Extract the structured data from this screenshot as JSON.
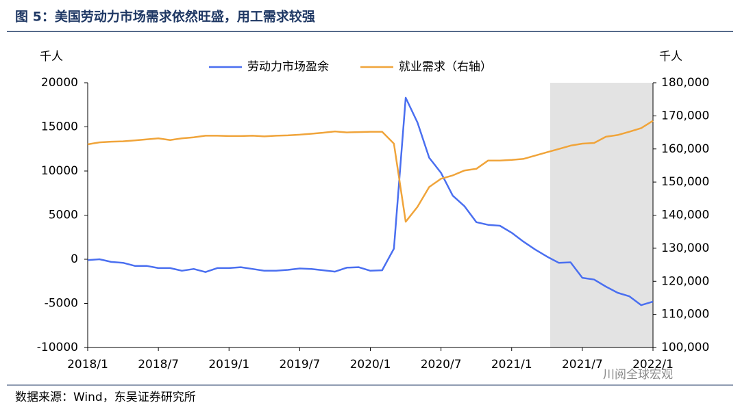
{
  "title": "图 5：美国劳动力市场需求依然旺盛，用工需求较强",
  "source": "数据来源：Wind，东吴证券研究所",
  "watermark": "川阅全球宏观",
  "chart_data": {
    "type": "line",
    "ylabel": "千人",
    "y2label": "千人",
    "categories": [
      "2018/1",
      null,
      null,
      null,
      null,
      null,
      "2018/7",
      null,
      null,
      null,
      null,
      null,
      "2019/1",
      null,
      null,
      null,
      null,
      null,
      "2019/7",
      null,
      null,
      null,
      null,
      null,
      "2020/1",
      null,
      null,
      null,
      null,
      null,
      "2020/7",
      null,
      null,
      null,
      null,
      null,
      "2021/1",
      null,
      null,
      null,
      null,
      null,
      "2021/7",
      null,
      null,
      null,
      null,
      null,
      "2022/1"
    ],
    "series": [
      {
        "name": "劳动力市场盈余",
        "color": "#4a6ff0",
        "axis": "y",
        "values": [
          -100,
          0,
          -300,
          -400,
          -750,
          -750,
          -1000,
          -1000,
          -1300,
          -1100,
          -1450,
          -1000,
          -1000,
          -900,
          -1100,
          -1300,
          -1300,
          -1200,
          -1050,
          -1100,
          -1250,
          -1400,
          -950,
          -900,
          -1300,
          -1250,
          1200,
          18300,
          15500,
          11500,
          9800,
          7200,
          6000,
          4200,
          3900,
          3800,
          3000,
          2000,
          1100,
          300,
          -400,
          -350,
          -2100,
          -2300,
          -3100,
          -3800,
          -4200,
          -5200,
          -4800
        ]
      },
      {
        "name": "就业需求（右轴）",
        "color": "#f0a43a",
        "axis": "y2",
        "values": [
          161400,
          162000,
          162200,
          162300,
          162600,
          162900,
          163200,
          162700,
          163200,
          163500,
          164000,
          164000,
          163900,
          163900,
          164000,
          163800,
          164000,
          164100,
          164300,
          164600,
          164900,
          165300,
          165000,
          165100,
          165200,
          165200,
          161600,
          138000,
          142500,
          148500,
          151000,
          152000,
          153500,
          154000,
          156500,
          156500,
          156700,
          157000,
          158000,
          159000,
          160000,
          161000,
          161600,
          161800,
          163700,
          164200,
          165200,
          166300,
          168500
        ]
      }
    ],
    "ylim": [
      -10000,
      20000
    ],
    "yticks": [
      -10000,
      -5000,
      0,
      5000,
      10000,
      15000,
      20000
    ],
    "y2lim": [
      100000,
      180000
    ],
    "y2ticks": [
      {
        "value": 100000,
        "label": "100,000"
      },
      {
        "value": 110000,
        "label": "110,000"
      },
      {
        "value": 120000,
        "label": "120,000"
      },
      {
        "value": 130000,
        "label": "130,000"
      },
      {
        "value": 140000,
        "label": "140,000"
      },
      {
        "value": 150000,
        "label": "150,000"
      },
      {
        "value": 160000,
        "label": "160,000"
      },
      {
        "value": 170000,
        "label": "170,000"
      },
      {
        "value": 180000,
        "label": "180,000"
      }
    ],
    "legend": "top"
  }
}
